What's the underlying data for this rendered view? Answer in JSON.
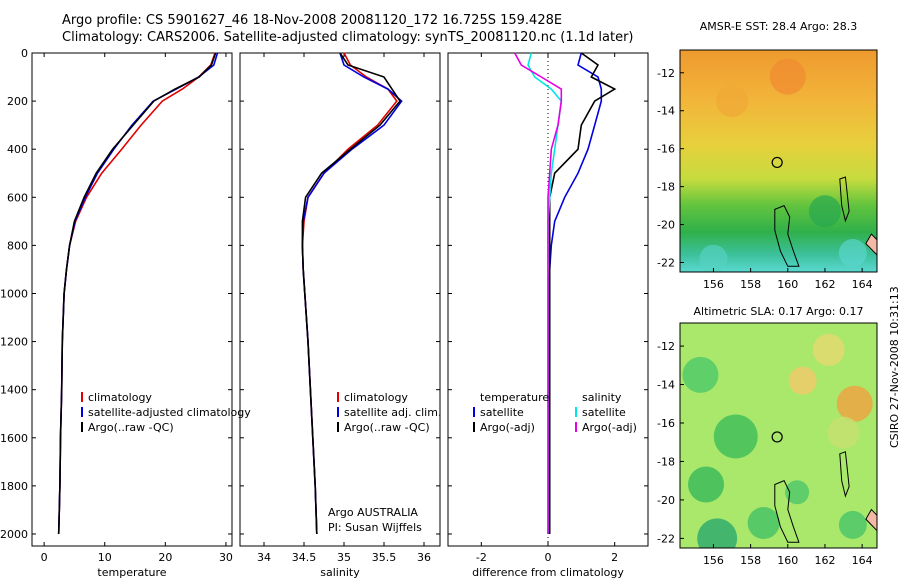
{
  "header": {
    "line1": "Argo profile: CS 5901627_46 18-Nov-2008 20081120_172 16.725S 159.428E",
    "line2": "Climatology: CARS2006. Satellite-adjusted climatology: synTS_20081120.nc (1.1d later)"
  },
  "stamp": "CSIRO 27-Nov-2008 10:31:13",
  "colors": {
    "clim": "#e00000",
    "sat": "#0000e0",
    "argo": "#000000",
    "cyan": "#00e6e6",
    "magenta": "#e600e6"
  },
  "chart_data": [
    {
      "type": "line",
      "panel": "temperature",
      "xlabel": "temperature",
      "ylabel": "",
      "xlim": [
        -2,
        31
      ],
      "ylim": [
        2050,
        0
      ],
      "xticks": [
        0,
        10,
        20,
        30
      ],
      "yticks": [
        0,
        200,
        400,
        600,
        800,
        1000,
        1200,
        1400,
        1600,
        1800,
        2000
      ],
      "legend": [
        "climatology",
        "satellite-adjusted climatology",
        "Argo(..raw -QC)"
      ],
      "series": [
        {
          "name": "climatology",
          "color": "#e00000",
          "x": [
            28.2,
            27.5,
            25.5,
            22.8,
            19.5,
            16.0,
            12.8,
            9.5,
            7.0,
            5.2,
            4.2,
            3.7,
            3.3,
            3.0,
            2.9,
            2.7,
            2.6,
            2.5,
            2.4
          ],
          "y": [
            0,
            50,
            100,
            150,
            200,
            300,
            400,
            500,
            600,
            700,
            800,
            900,
            1000,
            1200,
            1400,
            1600,
            1800,
            1900,
            2000
          ]
        },
        {
          "name": "satellite-adjusted climatology",
          "color": "#0000e0",
          "x": [
            28.6,
            28.0,
            25.5,
            21.8,
            18.0,
            14.5,
            11.5,
            8.8,
            6.8,
            5.1,
            4.2,
            3.7,
            3.3,
            3.0,
            2.9,
            2.7,
            2.6,
            2.5,
            2.4
          ],
          "y": [
            0,
            50,
            100,
            150,
            200,
            300,
            400,
            500,
            600,
            700,
            800,
            900,
            1000,
            1200,
            1400,
            1600,
            1800,
            1900,
            2000
          ]
        },
        {
          "name": "Argo(..raw -QC)",
          "color": "#000000",
          "x": [
            28.3,
            27.6,
            25.6,
            21.6,
            18.1,
            14.7,
            11.3,
            8.6,
            6.6,
            5.0,
            4.2,
            3.7,
            3.3,
            3.0,
            2.9,
            2.7,
            2.6,
            2.5,
            2.4
          ],
          "y": [
            0,
            50,
            100,
            150,
            200,
            300,
            400,
            500,
            600,
            700,
            800,
            900,
            1000,
            1200,
            1400,
            1600,
            1800,
            1900,
            2000
          ]
        }
      ]
    },
    {
      "type": "line",
      "panel": "salinity",
      "xlabel": "salinity",
      "xlim": [
        33.7,
        36.2
      ],
      "ylim": [
        2050,
        0
      ],
      "xticks": [
        34,
        34.5,
        35,
        35.5,
        36
      ],
      "legend": [
        "climatology",
        "satellite adj. clim.",
        "Argo(..raw -QC)"
      ],
      "annotation": [
        "Argo AUSTRALIA",
        "PI: Susan Wijffels"
      ],
      "series": [
        {
          "name": "climatology",
          "color": "#e00000",
          "x": [
            35.0,
            35.08,
            35.28,
            35.55,
            35.66,
            35.42,
            35.05,
            34.75,
            34.55,
            34.5,
            34.48,
            34.49,
            34.51,
            34.55,
            34.58,
            34.61,
            34.64,
            34.65,
            34.66
          ],
          "y": [
            0,
            50,
            100,
            150,
            200,
            300,
            400,
            500,
            600,
            700,
            800,
            900,
            1000,
            1200,
            1400,
            1600,
            1800,
            1900,
            2000
          ]
        },
        {
          "name": "satellite adj. clim.",
          "color": "#0000e0",
          "x": [
            34.95,
            35.0,
            35.25,
            35.55,
            35.72,
            35.5,
            35.1,
            34.75,
            34.55,
            34.49,
            34.48,
            34.49,
            34.51,
            34.55,
            34.58,
            34.61,
            34.64,
            34.65,
            34.66
          ],
          "y": [
            0,
            50,
            100,
            150,
            200,
            300,
            400,
            500,
            600,
            700,
            800,
            900,
            1000,
            1200,
            1400,
            1600,
            1800,
            1900,
            2000
          ]
        },
        {
          "name": "Argo(..raw -QC)",
          "color": "#000000",
          "x": [
            34.95,
            35.05,
            35.5,
            35.6,
            35.7,
            35.45,
            35.08,
            34.72,
            34.52,
            34.48,
            34.48,
            34.49,
            34.51,
            34.55,
            34.58,
            34.61,
            34.64,
            34.65,
            34.66
          ],
          "y": [
            0,
            50,
            100,
            150,
            200,
            300,
            400,
            500,
            600,
            700,
            800,
            900,
            1000,
            1200,
            1400,
            1600,
            1800,
            1900,
            2000
          ]
        }
      ]
    },
    {
      "type": "line",
      "panel": "difference",
      "xlabel": "difference from climatology",
      "xlim": [
        -3,
        3
      ],
      "ylim": [
        2050,
        0
      ],
      "xticks": [
        -2,
        0,
        2
      ],
      "legend_left_title": "temperature",
      "legend_right_title": "salinity",
      "legend_left": [
        "satellite",
        "Argo(-adj)"
      ],
      "legend_right": [
        "satellite",
        "Argo(-adj)"
      ],
      "series": [
        {
          "name": "temperature satellite",
          "color": "#0000e0",
          "x": [
            1.0,
            0.9,
            1.5,
            1.6,
            1.6,
            1.4,
            1.2,
            0.9,
            0.5,
            0.2,
            0.1,
            0.05,
            0.02,
            0.01,
            0.01,
            0.01,
            0.01,
            0.01,
            0.01
          ],
          "y": [
            0,
            50,
            100,
            150,
            200,
            300,
            400,
            500,
            600,
            700,
            800,
            900,
            1000,
            1200,
            1400,
            1600,
            1800,
            1900,
            2000
          ]
        },
        {
          "name": "temperature Argo(-adj)",
          "color": "#000000",
          "x": [
            1.0,
            1.5,
            1.3,
            2.0,
            1.4,
            1.0,
            0.9,
            0.2,
            0.05,
            0.05,
            0.05,
            0.05,
            0.05,
            0.05,
            0.05,
            0.05,
            0.05,
            0.05,
            0.05
          ],
          "y": [
            0,
            50,
            100,
            150,
            200,
            300,
            400,
            500,
            600,
            700,
            800,
            900,
            1000,
            1200,
            1400,
            1600,
            1800,
            1900,
            2000
          ]
        },
        {
          "name": "salinity satellite",
          "color": "#00e6e6",
          "x": [
            -0.5,
            -0.6,
            -0.4,
            0.1,
            0.4,
            0.3,
            0.2,
            0.1,
            0.05,
            0.0,
            0.0,
            0.0,
            0.0,
            0.0,
            0.0,
            0.0,
            0.0,
            0.0,
            0.0
          ],
          "y": [
            0,
            50,
            100,
            150,
            200,
            300,
            400,
            500,
            600,
            700,
            800,
            900,
            1000,
            1200,
            1400,
            1600,
            1800,
            1900,
            2000
          ]
        },
        {
          "name": "salinity Argo(-adj)",
          "color": "#e600e6",
          "x": [
            -1.0,
            -0.8,
            -0.2,
            0.4,
            0.4,
            0.3,
            0.1,
            0.05,
            0.0,
            0.0,
            0.0,
            0.0,
            0.0,
            0.0,
            0.0,
            0.0,
            0.0,
            0.0,
            0.0
          ],
          "y": [
            0,
            50,
            100,
            150,
            200,
            300,
            400,
            500,
            600,
            700,
            800,
            900,
            1000,
            1200,
            1400,
            1600,
            1800,
            1900,
            2000
          ]
        }
      ]
    },
    {
      "type": "heatmap",
      "panel": "map-sst",
      "title": "AMSR-E SST: 28.4 Argo: 28.3",
      "xlim": [
        154.2,
        164.8
      ],
      "ylim": [
        -22.5,
        -10.8
      ],
      "xticks": [
        156,
        158,
        160,
        162,
        164
      ],
      "yticks": [
        -12,
        -14,
        -16,
        -18,
        -20,
        -22
      ],
      "marker": {
        "lon": 159.428,
        "lat": -16.725
      }
    },
    {
      "type": "heatmap",
      "panel": "map-sla",
      "title": "Altimetric SLA: 0.17 Argo: 0.17",
      "xlim": [
        154.2,
        164.8
      ],
      "ylim": [
        -22.5,
        -10.8
      ],
      "xticks": [
        156,
        158,
        160,
        162,
        164
      ],
      "yticks": [
        -12,
        -14,
        -16,
        -18,
        -20,
        -22
      ],
      "marker": {
        "lon": 159.428,
        "lat": -16.725
      }
    }
  ]
}
